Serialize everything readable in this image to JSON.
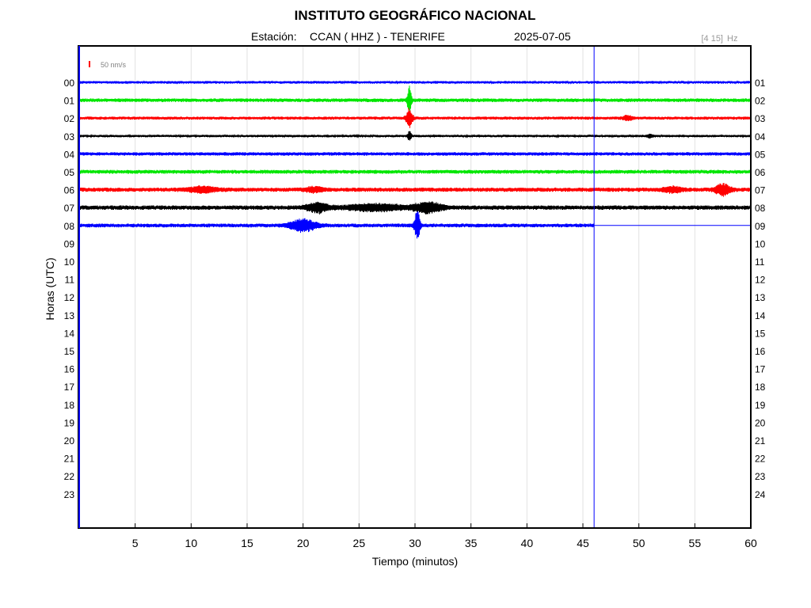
{
  "header": {
    "title": "INSTITUTO GEOGRÁFICO NACIONAL",
    "station_prefix": "Estación:",
    "station": "CCAN ( HHZ ) - TENERIFE",
    "date": "2025-07-05",
    "filter_band": "[4 15]",
    "filter_unit": "Hz"
  },
  "chart_data": {
    "type": "line",
    "chart_kind": "helicorder",
    "xlabel": "Tiempo (minutos)",
    "ylabel": "Horas (UTC)",
    "xlim": [
      0,
      60
    ],
    "x_ticks": [
      5,
      10,
      15,
      20,
      25,
      30,
      35,
      40,
      45,
      50,
      55,
      60
    ],
    "left_hour_labels": [
      "00",
      "01",
      "02",
      "03",
      "04",
      "05",
      "06",
      "07",
      "08",
      "09",
      "10",
      "11",
      "12",
      "13",
      "14",
      "15",
      "16",
      "17",
      "18",
      "19",
      "20",
      "21",
      "22",
      "23"
    ],
    "right_hour_labels": [
      "01",
      "02",
      "03",
      "04",
      "05",
      "06",
      "07",
      "08",
      "09",
      "10",
      "11",
      "12",
      "13",
      "14",
      "15",
      "16",
      "17",
      "18",
      "19",
      "20",
      "21",
      "22",
      "23",
      "24"
    ],
    "vertical_grid": true,
    "current_time_minute": 46,
    "current_hour_row": 8,
    "scale_bar": {
      "label": "50 nm/s",
      "color": "#ff0000"
    },
    "trace_colors": [
      "#0000ff",
      "#00e600",
      "#ff0000",
      "#000000"
    ],
    "traces": [
      {
        "hour": "00",
        "color": "#0000ff",
        "base_amplitude": 1.4,
        "end_minute": 60,
        "events": []
      },
      {
        "hour": "01",
        "color": "#00e600",
        "base_amplitude": 1.9,
        "end_minute": 60,
        "events": [
          {
            "minute": 29.5,
            "amplitude": 20,
            "duration": 0.2
          }
        ]
      },
      {
        "hour": "02",
        "color": "#ff0000",
        "base_amplitude": 1.6,
        "end_minute": 60,
        "events": [
          {
            "minute": 29.5,
            "amplitude": 12,
            "duration": 0.35
          },
          {
            "minute": 49,
            "amplitude": 3,
            "duration": 0.5
          }
        ]
      },
      {
        "hour": "03",
        "color": "#000000",
        "base_amplitude": 1.3,
        "end_minute": 60,
        "events": [
          {
            "minute": 29.5,
            "amplitude": 6,
            "duration": 0.2
          },
          {
            "minute": 51,
            "amplitude": 2,
            "duration": 0.4
          }
        ]
      },
      {
        "hour": "04",
        "color": "#0000ff",
        "base_amplitude": 1.8,
        "end_minute": 60,
        "events": []
      },
      {
        "hour": "05",
        "color": "#00e600",
        "base_amplitude": 2.0,
        "end_minute": 60,
        "events": []
      },
      {
        "hour": "06",
        "color": "#ff0000",
        "base_amplitude": 2.2,
        "end_minute": 60,
        "events": [
          {
            "minute": 11,
            "amplitude": 3.5,
            "duration": 1.5
          },
          {
            "minute": 21,
            "amplitude": 3,
            "duration": 1
          },
          {
            "minute": 53,
            "amplitude": 3.5,
            "duration": 1
          },
          {
            "minute": 57.5,
            "amplitude": 7,
            "duration": 0.8
          }
        ]
      },
      {
        "hour": "07",
        "color": "#000000",
        "base_amplitude": 2.3,
        "end_minute": 60,
        "events": [
          {
            "minute": 21.3,
            "amplitude": 6,
            "duration": 1.2
          },
          {
            "minute": 26.5,
            "amplitude": 4,
            "duration": 3
          },
          {
            "minute": 31.2,
            "amplitude": 6.5,
            "duration": 1.5
          }
        ]
      },
      {
        "hour": "08",
        "color": "#0000ff",
        "base_amplitude": 2.0,
        "end_minute": 46,
        "events": [
          {
            "minute": 20,
            "amplitude": 8,
            "duration": 1.4
          },
          {
            "minute": 30.2,
            "amplitude": 18,
            "duration": 0.3
          }
        ]
      }
    ]
  }
}
